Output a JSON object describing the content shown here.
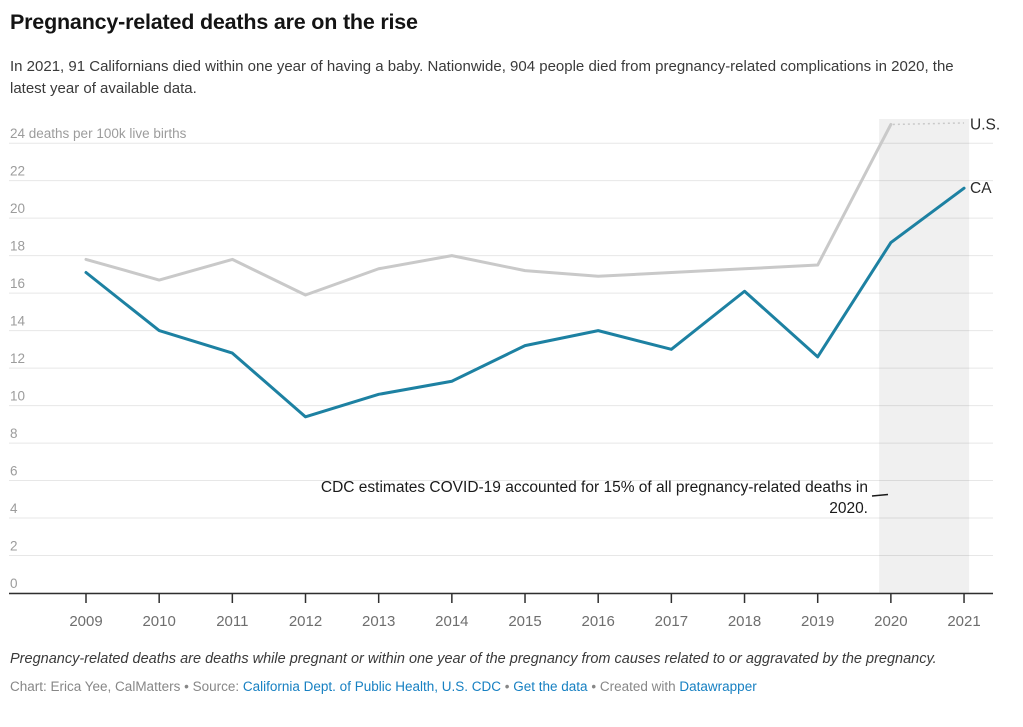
{
  "header": {
    "title": "Pregnancy-related deaths are on the rise",
    "description": "In 2021, 91 Californians died within one year of having a baby. Nationwide, 904 people died from pregnancy-related complications in 2020, the latest year of available data."
  },
  "chart_data": {
    "type": "line",
    "x": [
      2009,
      2010,
      2011,
      2012,
      2013,
      2014,
      2015,
      2016,
      2017,
      2018,
      2019,
      2020,
      2021
    ],
    "series": [
      {
        "name": "U.S.",
        "color": "#c9c9c9",
        "values": [
          17.8,
          16.7,
          17.8,
          15.9,
          17.3,
          18.0,
          17.2,
          16.9,
          17.1,
          17.3,
          17.5,
          25.0,
          null
        ]
      },
      {
        "name": "CA",
        "color": "#1d81a2",
        "values": [
          17.1,
          14.0,
          12.8,
          9.4,
          10.6,
          11.3,
          13.2,
          14.0,
          13.0,
          16.1,
          12.6,
          18.7,
          21.6
        ]
      }
    ],
    "title": "Pregnancy-related deaths are on the rise",
    "xlabel": "",
    "ylabel": "deaths per 100k live births",
    "ylim": [
      0,
      24
    ],
    "y_tick_step": 2,
    "y_unit_label": "deaths per 100k live births",
    "grid": true,
    "legend_position": "line-end-labels",
    "line_labels": {
      "us": "U.S.",
      "ca": "CA"
    },
    "highlight_region": {
      "from_x": 2019.84,
      "to_x": 2021.07
    },
    "annotation": {
      "lines": [
        "CDC estimates COVID-19 accounted for 15% of all pregnancy-related deaths in",
        "2020."
      ],
      "align": "right"
    },
    "colors": {
      "grid": "#e7e7e7",
      "axis": "#2f2f2f",
      "y_tick_label": "#9c9c9c",
      "x_tick_label": "#6e6e6e",
      "line_label": "#2b2b2b",
      "annotation_text": "#1a1a1a"
    }
  },
  "footer": {
    "note": "Pregnancy-related deaths are deaths while pregnant or within one year of the pregnancy from causes related to or aggravated by the pregnancy.",
    "credit_prefix": "Chart: Erica Yee, CalMatters",
    "separator": "•",
    "source_label": "Source:",
    "source_link": "California Dept. of Public Health, U.S. CDC",
    "get_data_link": "Get the data",
    "created_with": "Created with",
    "datawrapper_link": "Datawrapper"
  }
}
